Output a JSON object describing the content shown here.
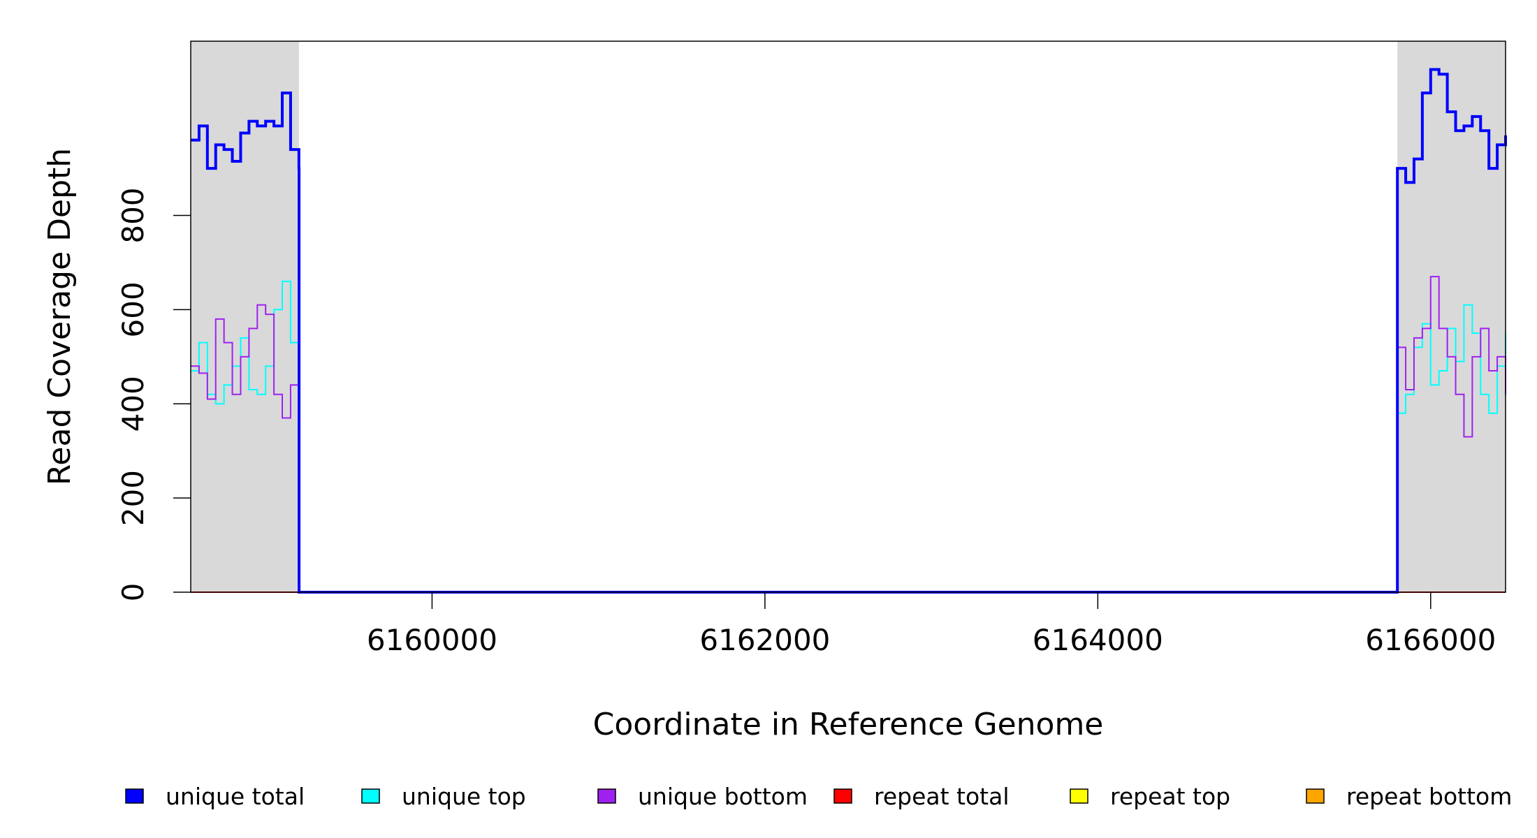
{
  "chart_data": {
    "type": "line",
    "title": "",
    "xlabel": "Coordinate in Reference Genome",
    "ylabel": "Read Coverage Depth",
    "xlim": [
      6158550,
      6166450
    ],
    "ylim": [
      0,
      1170
    ],
    "x_ticks": [
      6160000,
      6162000,
      6164000,
      6166000
    ],
    "x_tick_labels": [
      "6160000",
      "6162000",
      "6164000",
      "6166000"
    ],
    "y_ticks": [
      0,
      200,
      400,
      600,
      800
    ],
    "y_tick_labels": [
      "0",
      "200",
      "400",
      "600",
      "800"
    ],
    "shaded_regions": [
      [
        6158550,
        6159200
      ],
      [
        6165800,
        6166450
      ]
    ],
    "colors": {
      "unique_total": "#0000ff",
      "unique_top": "#00ffff",
      "unique_bottom": "#a020f0",
      "repeat_total": "#ff0000",
      "repeat_top": "#ffff00",
      "repeat_bottom": "#ffa500",
      "shade": "#d9d9d9"
    },
    "legend": {
      "position": "bottom",
      "entries": [
        {
          "label": "unique total",
          "color": "#0000ff"
        },
        {
          "label": "unique top",
          "color": "#00ffff"
        },
        {
          "label": "unique bottom",
          "color": "#a020f0"
        },
        {
          "label": "repeat total",
          "color": "#ff0000"
        },
        {
          "label": "repeat top",
          "color": "#ffff00"
        },
        {
          "label": "repeat bottom",
          "color": "#ffa500"
        }
      ]
    },
    "series": [
      {
        "name": "unique total",
        "x": [
          6158550,
          6158600,
          6158650,
          6158700,
          6158750,
          6158800,
          6158850,
          6158900,
          6158950,
          6159000,
          6159050,
          6159100,
          6159150,
          6159200,
          6159201,
          6165799,
          6165800,
          6165850,
          6165900,
          6165950,
          6166000,
          6166050,
          6166100,
          6166150,
          6166200,
          6166250,
          6166300,
          6166350,
          6166400,
          6166450
        ],
        "values": [
          960,
          990,
          900,
          950,
          940,
          915,
          975,
          1000,
          990,
          1000,
          990,
          1060,
          940,
          900,
          0,
          0,
          900,
          870,
          920,
          1060,
          1110,
          1100,
          1020,
          980,
          990,
          1010,
          980,
          900,
          950,
          970
        ]
      },
      {
        "name": "unique top",
        "x": [
          6158550,
          6158600,
          6158650,
          6158700,
          6158750,
          6158800,
          6158850,
          6158900,
          6158950,
          6159000,
          6159050,
          6159100,
          6159150,
          6159200,
          6159201,
          6165799,
          6165800,
          6165850,
          6165900,
          6165950,
          6166000,
          6166050,
          6166100,
          6166150,
          6166200,
          6166250,
          6166300,
          6166350,
          6166400,
          6166450
        ],
        "values": [
          470,
          530,
          420,
          400,
          440,
          480,
          540,
          430,
          420,
          480,
          600,
          660,
          530,
          440,
          0,
          0,
          380,
          420,
          520,
          570,
          440,
          470,
          560,
          490,
          610,
          550,
          420,
          380,
          480,
          550
        ]
      },
      {
        "name": "unique bottom",
        "x": [
          6158550,
          6158600,
          6158650,
          6158700,
          6158750,
          6158800,
          6158850,
          6158900,
          6158950,
          6159000,
          6159050,
          6159100,
          6159150,
          6159200,
          6159201,
          6165799,
          6165800,
          6165850,
          6165900,
          6165950,
          6166000,
          6166050,
          6166100,
          6166150,
          6166200,
          6166250,
          6166300,
          6166350,
          6166400,
          6166450
        ],
        "values": [
          480,
          465,
          410,
          580,
          530,
          420,
          500,
          560,
          610,
          590,
          420,
          370,
          440,
          450,
          0,
          0,
          520,
          430,
          540,
          560,
          670,
          560,
          500,
          420,
          330,
          500,
          560,
          470,
          500,
          420
        ]
      },
      {
        "name": "repeat total",
        "x": [
          6158550,
          6166450
        ],
        "values": [
          0,
          0
        ]
      },
      {
        "name": "repeat top",
        "x": [
          6158550,
          6166450
        ],
        "values": [
          0,
          0
        ]
      },
      {
        "name": "repeat bottom",
        "x": [
          6158550,
          6166450
        ],
        "values": [
          0,
          0
        ]
      }
    ]
  }
}
